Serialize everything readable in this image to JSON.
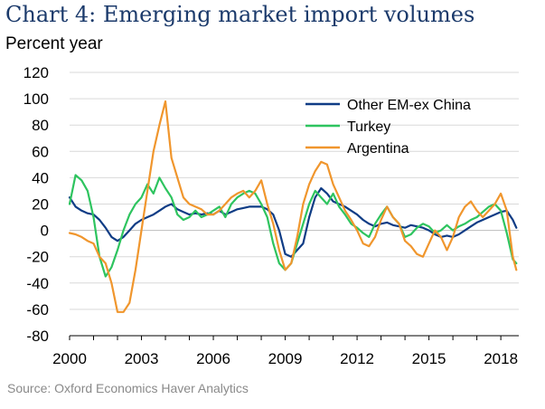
{
  "chart_data": {
    "type": "line",
    "title": "Chart 4: Emerging market import volumes",
    "ylabel": "Percent year",
    "xlabel": "",
    "ylim": [
      -80,
      120
    ],
    "xlim": [
      2000,
      2018.75
    ],
    "yticks": [
      120,
      100,
      80,
      60,
      40,
      20,
      0,
      -20,
      -40,
      -60,
      -80
    ],
    "xticks": [
      2000,
      2003,
      2006,
      2009,
      2012,
      2015,
      2018
    ],
    "legend_position": "top-right",
    "series": [
      {
        "name": "Other EM-ex China",
        "color": "#0f3c85",
        "points": [
          [
            2000.0,
            25
          ],
          [
            2000.25,
            18
          ],
          [
            2000.5,
            15
          ],
          [
            2000.75,
            13
          ],
          [
            2001.0,
            12
          ],
          [
            2001.25,
            8
          ],
          [
            2001.5,
            2
          ],
          [
            2001.75,
            -5
          ],
          [
            2002.0,
            -8
          ],
          [
            2002.25,
            -5
          ],
          [
            2002.5,
            0
          ],
          [
            2002.75,
            5
          ],
          [
            2003.0,
            8
          ],
          [
            2003.25,
            10
          ],
          [
            2003.5,
            12
          ],
          [
            2003.75,
            15
          ],
          [
            2004.0,
            18
          ],
          [
            2004.25,
            20
          ],
          [
            2004.5,
            16
          ],
          [
            2004.75,
            14
          ],
          [
            2005.0,
            12
          ],
          [
            2005.25,
            13
          ],
          [
            2005.5,
            12
          ],
          [
            2005.75,
            13
          ],
          [
            2006.0,
            12
          ],
          [
            2006.25,
            15
          ],
          [
            2006.5,
            12
          ],
          [
            2006.75,
            14
          ],
          [
            2007.0,
            16
          ],
          [
            2007.25,
            17
          ],
          [
            2007.5,
            18
          ],
          [
            2007.75,
            18
          ],
          [
            2008.0,
            18
          ],
          [
            2008.25,
            16
          ],
          [
            2008.5,
            12
          ],
          [
            2008.75,
            0
          ],
          [
            2009.0,
            -18
          ],
          [
            2009.25,
            -20
          ],
          [
            2009.5,
            -15
          ],
          [
            2009.75,
            -10
          ],
          [
            2010.0,
            10
          ],
          [
            2010.25,
            25
          ],
          [
            2010.5,
            32
          ],
          [
            2010.75,
            28
          ],
          [
            2011.0,
            22
          ],
          [
            2011.25,
            20
          ],
          [
            2011.5,
            18
          ],
          [
            2011.75,
            15
          ],
          [
            2012.0,
            12
          ],
          [
            2012.25,
            8
          ],
          [
            2012.5,
            5
          ],
          [
            2012.75,
            3
          ],
          [
            2013.0,
            5
          ],
          [
            2013.25,
            6
          ],
          [
            2013.5,
            4
          ],
          [
            2013.75,
            3
          ],
          [
            2014.0,
            2
          ],
          [
            2014.25,
            4
          ],
          [
            2014.5,
            3
          ],
          [
            2014.75,
            2
          ],
          [
            2015.0,
            0
          ],
          [
            2015.25,
            -3
          ],
          [
            2015.5,
            -5
          ],
          [
            2015.75,
            -4
          ],
          [
            2016.0,
            -5
          ],
          [
            2016.25,
            -3
          ],
          [
            2016.5,
            0
          ],
          [
            2016.75,
            3
          ],
          [
            2017.0,
            6
          ],
          [
            2017.25,
            8
          ],
          [
            2017.5,
            10
          ],
          [
            2017.75,
            12
          ],
          [
            2018.0,
            14
          ],
          [
            2018.25,
            15
          ],
          [
            2018.5,
            8
          ],
          [
            2018.65,
            2
          ]
        ]
      },
      {
        "name": "Turkey",
        "color": "#2ec45f",
        "points": [
          [
            2000.0,
            20
          ],
          [
            2000.25,
            42
          ],
          [
            2000.5,
            38
          ],
          [
            2000.75,
            30
          ],
          [
            2001.0,
            10
          ],
          [
            2001.25,
            -20
          ],
          [
            2001.5,
            -35
          ],
          [
            2001.75,
            -28
          ],
          [
            2002.0,
            -15
          ],
          [
            2002.25,
            0
          ],
          [
            2002.5,
            12
          ],
          [
            2002.75,
            20
          ],
          [
            2003.0,
            25
          ],
          [
            2003.25,
            35
          ],
          [
            2003.5,
            28
          ],
          [
            2003.75,
            40
          ],
          [
            2004.0,
            32
          ],
          [
            2004.25,
            25
          ],
          [
            2004.5,
            12
          ],
          [
            2004.75,
            8
          ],
          [
            2005.0,
            10
          ],
          [
            2005.25,
            15
          ],
          [
            2005.5,
            10
          ],
          [
            2005.75,
            12
          ],
          [
            2006.0,
            15
          ],
          [
            2006.25,
            18
          ],
          [
            2006.5,
            10
          ],
          [
            2006.75,
            20
          ],
          [
            2007.0,
            25
          ],
          [
            2007.25,
            28
          ],
          [
            2007.5,
            30
          ],
          [
            2007.75,
            28
          ],
          [
            2008.0,
            20
          ],
          [
            2008.25,
            10
          ],
          [
            2008.5,
            -10
          ],
          [
            2008.75,
            -25
          ],
          [
            2009.0,
            -30
          ],
          [
            2009.25,
            -25
          ],
          [
            2009.5,
            -10
          ],
          [
            2009.75,
            5
          ],
          [
            2010.0,
            20
          ],
          [
            2010.25,
            30
          ],
          [
            2010.5,
            25
          ],
          [
            2010.75,
            20
          ],
          [
            2011.0,
            28
          ],
          [
            2011.25,
            18
          ],
          [
            2011.5,
            12
          ],
          [
            2011.75,
            5
          ],
          [
            2012.0,
            2
          ],
          [
            2012.25,
            -2
          ],
          [
            2012.5,
            -5
          ],
          [
            2012.75,
            5
          ],
          [
            2013.0,
            12
          ],
          [
            2013.25,
            18
          ],
          [
            2013.5,
            10
          ],
          [
            2013.75,
            5
          ],
          [
            2014.0,
            -5
          ],
          [
            2014.25,
            -3
          ],
          [
            2014.5,
            2
          ],
          [
            2014.75,
            5
          ],
          [
            2015.0,
            3
          ],
          [
            2015.25,
            -2
          ],
          [
            2015.5,
            0
          ],
          [
            2015.75,
            4
          ],
          [
            2016.0,
            0
          ],
          [
            2016.25,
            3
          ],
          [
            2016.5,
            5
          ],
          [
            2016.75,
            8
          ],
          [
            2017.0,
            10
          ],
          [
            2017.25,
            14
          ],
          [
            2017.5,
            18
          ],
          [
            2017.75,
            20
          ],
          [
            2018.0,
            15
          ],
          [
            2018.25,
            -2
          ],
          [
            2018.5,
            -22
          ],
          [
            2018.65,
            -25
          ]
        ]
      },
      {
        "name": "Argentina",
        "color": "#f0962d",
        "points": [
          [
            2000.0,
            -2
          ],
          [
            2000.25,
            -3
          ],
          [
            2000.5,
            -5
          ],
          [
            2000.75,
            -8
          ],
          [
            2001.0,
            -10
          ],
          [
            2001.25,
            -20
          ],
          [
            2001.5,
            -25
          ],
          [
            2001.75,
            -40
          ],
          [
            2002.0,
            -62
          ],
          [
            2002.25,
            -62
          ],
          [
            2002.5,
            -55
          ],
          [
            2002.75,
            -30
          ],
          [
            2003.0,
            0
          ],
          [
            2003.25,
            30
          ],
          [
            2003.5,
            60
          ],
          [
            2003.75,
            80
          ],
          [
            2004.0,
            98
          ],
          [
            2004.25,
            55
          ],
          [
            2004.5,
            40
          ],
          [
            2004.75,
            25
          ],
          [
            2005.0,
            20
          ],
          [
            2005.25,
            18
          ],
          [
            2005.5,
            16
          ],
          [
            2005.75,
            12
          ],
          [
            2006.0,
            12
          ],
          [
            2006.25,
            15
          ],
          [
            2006.5,
            20
          ],
          [
            2006.75,
            25
          ],
          [
            2007.0,
            28
          ],
          [
            2007.25,
            30
          ],
          [
            2007.5,
            25
          ],
          [
            2007.75,
            30
          ],
          [
            2008.0,
            38
          ],
          [
            2008.25,
            20
          ],
          [
            2008.5,
            5
          ],
          [
            2008.75,
            -15
          ],
          [
            2009.0,
            -30
          ],
          [
            2009.25,
            -25
          ],
          [
            2009.5,
            -5
          ],
          [
            2009.75,
            20
          ],
          [
            2010.0,
            35
          ],
          [
            2010.25,
            45
          ],
          [
            2010.5,
            52
          ],
          [
            2010.75,
            50
          ],
          [
            2011.0,
            35
          ],
          [
            2011.25,
            25
          ],
          [
            2011.5,
            15
          ],
          [
            2011.75,
            8
          ],
          [
            2012.0,
            0
          ],
          [
            2012.25,
            -10
          ],
          [
            2012.5,
            -12
          ],
          [
            2012.75,
            -5
          ],
          [
            2013.0,
            8
          ],
          [
            2013.25,
            18
          ],
          [
            2013.5,
            10
          ],
          [
            2013.75,
            5
          ],
          [
            2014.0,
            -8
          ],
          [
            2014.25,
            -12
          ],
          [
            2014.5,
            -18
          ],
          [
            2014.75,
            -20
          ],
          [
            2015.0,
            -10
          ],
          [
            2015.25,
            0
          ],
          [
            2015.5,
            -5
          ],
          [
            2015.75,
            -15
          ],
          [
            2016.0,
            -5
          ],
          [
            2016.25,
            10
          ],
          [
            2016.5,
            18
          ],
          [
            2016.75,
            22
          ],
          [
            2017.0,
            15
          ],
          [
            2017.25,
            10
          ],
          [
            2017.5,
            15
          ],
          [
            2017.75,
            20
          ],
          [
            2018.0,
            28
          ],
          [
            2018.25,
            15
          ],
          [
            2018.5,
            -20
          ],
          [
            2018.65,
            -30
          ]
        ]
      }
    ]
  },
  "source_text": "Source: Oxford Economics Haver Analytics"
}
